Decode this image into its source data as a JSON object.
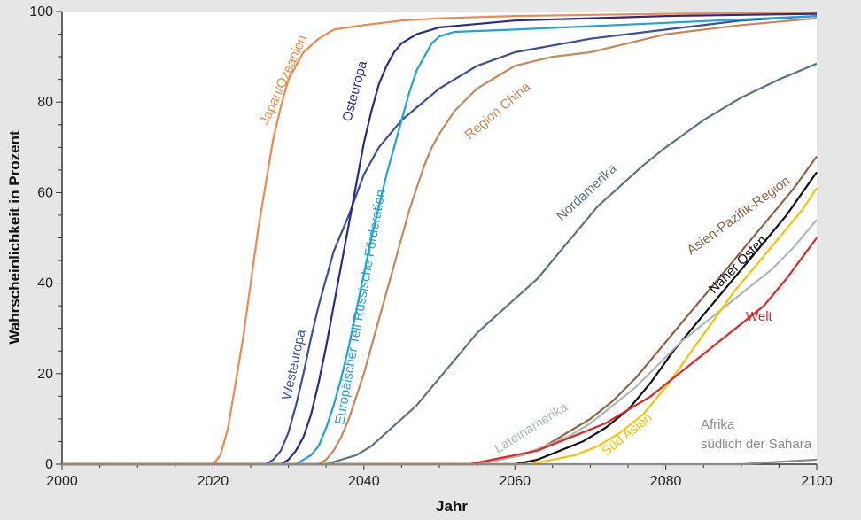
{
  "chart_data": {
    "type": "line",
    "title": "",
    "xlabel": "Jahr",
    "ylabel": "Wahrscheinlichkeit  in Prozent",
    "xlim": [
      2000,
      2100
    ],
    "ylim": [
      0,
      100
    ],
    "x_ticks": [
      "2000",
      "2020",
      "2040",
      "2060",
      "2080",
      "2100"
    ],
    "y_ticks": [
      "0",
      "20",
      "40",
      "60",
      "80",
      "100"
    ],
    "grid": false,
    "legend": "none (labels placed directly on the lines)",
    "series": [
      {
        "name": "Japan/Ozeanien",
        "color": "#f08a4b",
        "points": [
          [
            2000,
            0
          ],
          [
            2020,
            0
          ],
          [
            2021,
            2
          ],
          [
            2022,
            8
          ],
          [
            2023,
            18
          ],
          [
            2024,
            28
          ],
          [
            2025,
            40
          ],
          [
            2026,
            52
          ],
          [
            2027,
            62
          ],
          [
            2028,
            72
          ],
          [
            2029,
            79
          ],
          [
            2030,
            85
          ],
          [
            2032,
            91
          ],
          [
            2034,
            94
          ],
          [
            2036,
            96
          ],
          [
            2040,
            97
          ],
          [
            2045,
            98
          ],
          [
            2050,
            98.5
          ],
          [
            2060,
            99
          ],
          [
            2080,
            99.5
          ],
          [
            2100,
            99.8
          ]
        ]
      },
      {
        "name": "Westeuropa",
        "color": "#3a4f9a",
        "points": [
          [
            2000,
            0
          ],
          [
            2027,
            0
          ],
          [
            2028,
            1
          ],
          [
            2029,
            3
          ],
          [
            2030,
            7
          ],
          [
            2031,
            13
          ],
          [
            2032,
            20
          ],
          [
            2033,
            28
          ],
          [
            2034,
            35
          ],
          [
            2035,
            41
          ],
          [
            2036,
            47
          ],
          [
            2038,
            55
          ],
          [
            2040,
            64
          ],
          [
            2042,
            70
          ],
          [
            2045,
            76
          ],
          [
            2050,
            83
          ],
          [
            2055,
            88
          ],
          [
            2060,
            91
          ],
          [
            2070,
            94
          ],
          [
            2080,
            96
          ],
          [
            2090,
            98
          ],
          [
            2100,
            99
          ]
        ]
      },
      {
        "name": "Osteuropa",
        "color": "#272b8f",
        "points": [
          [
            2000,
            0
          ],
          [
            2029,
            0
          ],
          [
            2030,
            1
          ],
          [
            2031,
            3
          ],
          [
            2032,
            6
          ],
          [
            2033,
            11
          ],
          [
            2034,
            18
          ],
          [
            2035,
            26
          ],
          [
            2036,
            35
          ],
          [
            2037,
            44
          ],
          [
            2038,
            53
          ],
          [
            2039,
            62
          ],
          [
            2040,
            71
          ],
          [
            2041,
            78
          ],
          [
            2042,
            84
          ],
          [
            2043,
            88
          ],
          [
            2044,
            91
          ],
          [
            2045,
            93
          ],
          [
            2047,
            95
          ],
          [
            2050,
            96.5
          ],
          [
            2060,
            98
          ],
          [
            2080,
            99
          ],
          [
            2100,
            99.5
          ]
        ]
      },
      {
        "name": "Europäischer Teil Russische Förderation",
        "color": "#1ba3db",
        "points": [
          [
            2000,
            0
          ],
          [
            2031,
            0
          ],
          [
            2032,
            1
          ],
          [
            2033,
            2
          ],
          [
            2034,
            4
          ],
          [
            2035,
            8
          ],
          [
            2036,
            13
          ],
          [
            2037,
            19
          ],
          [
            2038,
            26
          ],
          [
            2039,
            34
          ],
          [
            2040,
            42
          ],
          [
            2041,
            50
          ],
          [
            2042,
            57
          ],
          [
            2043,
            64
          ],
          [
            2044,
            70
          ],
          [
            2045,
            76
          ],
          [
            2046,
            82
          ],
          [
            2047,
            87
          ],
          [
            2048,
            90
          ],
          [
            2049,
            93
          ],
          [
            2050,
            94.5
          ],
          [
            2052,
            95.5
          ],
          [
            2060,
            96
          ],
          [
            2080,
            97.5
          ],
          [
            2100,
            99
          ]
        ]
      },
      {
        "name": "Region China",
        "color": "#c88756",
        "points": [
          [
            2000,
            0
          ],
          [
            2034,
            0
          ],
          [
            2035,
            1
          ],
          [
            2036,
            3
          ],
          [
            2037,
            6
          ],
          [
            2038,
            10
          ],
          [
            2039,
            15
          ],
          [
            2040,
            20
          ],
          [
            2041,
            26
          ],
          [
            2042,
            32
          ],
          [
            2043,
            38
          ],
          [
            2044,
            44
          ],
          [
            2045,
            50
          ],
          [
            2046,
            56
          ],
          [
            2047,
            61
          ],
          [
            2048,
            66
          ],
          [
            2049,
            70
          ],
          [
            2050,
            73
          ],
          [
            2052,
            78
          ],
          [
            2055,
            83
          ],
          [
            2058,
            86
          ],
          [
            2060,
            88
          ],
          [
            2065,
            90
          ],
          [
            2070,
            91
          ],
          [
            2075,
            93
          ],
          [
            2080,
            95
          ],
          [
            2090,
            97
          ],
          [
            2100,
            98.5
          ]
        ]
      },
      {
        "name": "Nordamerika",
        "color": "#5b7484",
        "points": [
          [
            2000,
            0
          ],
          [
            2035,
            0
          ],
          [
            2037,
            1
          ],
          [
            2039,
            2
          ],
          [
            2041,
            4
          ],
          [
            2043,
            7
          ],
          [
            2045,
            10
          ],
          [
            2047,
            13
          ],
          [
            2049,
            17
          ],
          [
            2051,
            21
          ],
          [
            2053,
            25
          ],
          [
            2055,
            29
          ],
          [
            2057,
            32
          ],
          [
            2059,
            35
          ],
          [
            2061,
            38
          ],
          [
            2063,
            41
          ],
          [
            2065,
            45
          ],
          [
            2067,
            49
          ],
          [
            2069,
            53
          ],
          [
            2071,
            57
          ],
          [
            2073,
            60
          ],
          [
            2075,
            63
          ],
          [
            2077,
            66
          ],
          [
            2080,
            70
          ],
          [
            2085,
            76
          ],
          [
            2090,
            81
          ],
          [
            2095,
            85
          ],
          [
            2100,
            88.5
          ]
        ]
      },
      {
        "name": "Asien-Pazifik-Region",
        "color": "#8c6244",
        "points": [
          [
            2000,
            0
          ],
          [
            2055,
            0
          ],
          [
            2058,
            1
          ],
          [
            2061,
            2
          ],
          [
            2064,
            4
          ],
          [
            2067,
            7
          ],
          [
            2070,
            10
          ],
          [
            2073,
            14
          ],
          [
            2076,
            19
          ],
          [
            2079,
            25
          ],
          [
            2082,
            31
          ],
          [
            2085,
            37
          ],
          [
            2088,
            43
          ],
          [
            2091,
            49
          ],
          [
            2094,
            55
          ],
          [
            2097,
            61
          ],
          [
            2100,
            68
          ]
        ]
      },
      {
        "name": "Naher Osten",
        "color": "#111111",
        "points": [
          [
            2000,
            0
          ],
          [
            2060,
            0
          ],
          [
            2063,
            1
          ],
          [
            2066,
            3
          ],
          [
            2069,
            5
          ],
          [
            2072,
            8
          ],
          [
            2075,
            12
          ],
          [
            2078,
            18
          ],
          [
            2081,
            25
          ],
          [
            2084,
            31
          ],
          [
            2087,
            37
          ],
          [
            2090,
            43
          ],
          [
            2093,
            49
          ],
          [
            2096,
            55
          ],
          [
            2100,
            64.5
          ]
        ]
      },
      {
        "name": "Lateinamerika",
        "color": "#a9bab0",
        "points": [
          [
            2000,
            0
          ],
          [
            2055,
            0
          ],
          [
            2058,
            1
          ],
          [
            2061,
            2
          ],
          [
            2064,
            4
          ],
          [
            2067,
            6
          ],
          [
            2070,
            9
          ],
          [
            2073,
            13
          ],
          [
            2076,
            17
          ],
          [
            2079,
            22
          ],
          [
            2082,
            27
          ],
          [
            2085,
            31
          ],
          [
            2088,
            35
          ],
          [
            2091,
            39
          ],
          [
            2094,
            43
          ],
          [
            2097,
            48
          ],
          [
            2100,
            54
          ]
        ]
      },
      {
        "name": "Süd Asien",
        "color": "#f5c400",
        "points": [
          [
            2000,
            0
          ],
          [
            2062,
            0
          ],
          [
            2065,
            1
          ],
          [
            2068,
            2
          ],
          [
            2071,
            4
          ],
          [
            2074,
            7
          ],
          [
            2077,
            11
          ],
          [
            2080,
            17
          ],
          [
            2083,
            24
          ],
          [
            2086,
            31
          ],
          [
            2089,
            38
          ],
          [
            2092,
            44
          ],
          [
            2095,
            50
          ],
          [
            2098,
            56
          ],
          [
            2100,
            61
          ]
        ]
      },
      {
        "name": "Welt",
        "color": "#e3242b",
        "points": [
          [
            2000,
            0
          ],
          [
            2054,
            0
          ],
          [
            2057,
            1
          ],
          [
            2060,
            2
          ],
          [
            2063,
            3
          ],
          [
            2066,
            5
          ],
          [
            2069,
            7
          ],
          [
            2072,
            9
          ],
          [
            2075,
            12
          ],
          [
            2078,
            15
          ],
          [
            2081,
            19
          ],
          [
            2084,
            23
          ],
          [
            2087,
            27
          ],
          [
            2090,
            31
          ],
          [
            2093,
            35
          ],
          [
            2096,
            41
          ],
          [
            2100,
            50
          ]
        ]
      },
      {
        "name": "Afrika südlich der Sahara",
        "color": "#8a8a8a",
        "points": [
          [
            2000,
            0
          ],
          [
            2090,
            0
          ],
          [
            2095,
            0.5
          ],
          [
            2100,
            1
          ]
        ]
      }
    ],
    "series_labels": [
      {
        "text": "Japan/Ozeanien"
      },
      {
        "text": "Osteuropa"
      },
      {
        "text": "Westeuropa"
      },
      {
        "text": "Europäischer Teil Russische Förderation"
      },
      {
        "text": "Region China"
      },
      {
        "text": "Nordamerika"
      },
      {
        "text": "Asien-Pazifik-Region"
      },
      {
        "text": "Naher Osten"
      },
      {
        "text": "Welt"
      },
      {
        "text": "Lateinamerika"
      },
      {
        "text": "Süd Asien"
      },
      {
        "text": "Afrika"
      },
      {
        "text": "südlich der Sahara"
      }
    ]
  }
}
